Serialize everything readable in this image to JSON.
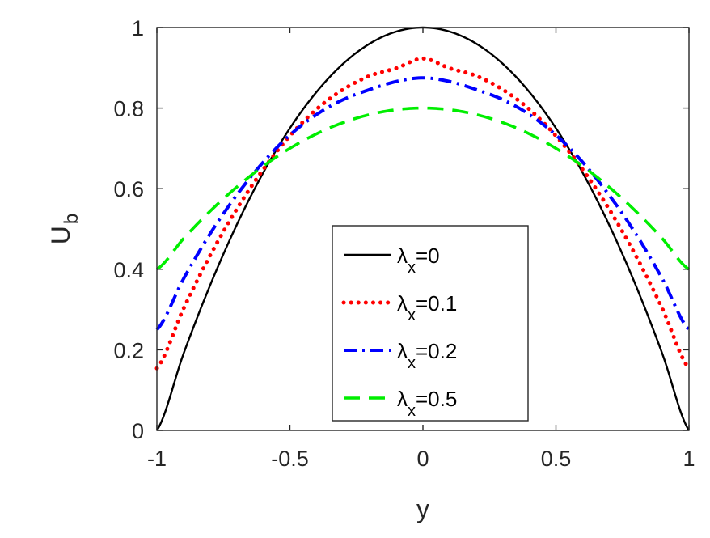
{
  "chart_data": {
    "type": "line",
    "xlabel": "y",
    "ylabel": {
      "main": "U",
      "sub": "b"
    },
    "xlim": [
      -1,
      1
    ],
    "ylim": [
      0,
      1
    ],
    "xticks": [
      -1,
      -0.5,
      0,
      0.5,
      1
    ],
    "xtick_labels": [
      "-1",
      "-0.5",
      "0",
      "0.5",
      "1"
    ],
    "yticks": [
      0,
      0.2,
      0.4,
      0.6,
      0.8,
      1
    ],
    "ytick_labels": [
      "0",
      "0.2",
      "0.4",
      "0.6",
      "0.8",
      "1"
    ],
    "grid": false,
    "legend_position": "center-bottom (inside axes)",
    "x": [
      -1.0,
      -0.9,
      -0.8,
      -0.7,
      -0.6,
      -0.5,
      -0.4,
      -0.3,
      -0.2,
      -0.1,
      0.0,
      0.1,
      0.2,
      0.3,
      0.4,
      0.5,
      0.6,
      0.7,
      0.8,
      0.9,
      1.0
    ],
    "series": [
      {
        "legend_symbol": "λ",
        "legend_sub": "x",
        "legend_value": "=0",
        "color": "#000000",
        "style": "solid",
        "values": [
          0.0,
          0.19,
          0.36,
          0.51,
          0.64,
          0.75,
          0.84,
          0.91,
          0.96,
          0.99,
          1.0,
          0.99,
          0.96,
          0.91,
          0.84,
          0.75,
          0.64,
          0.51,
          0.36,
          0.19,
          0.0
        ]
      },
      {
        "legend_symbol": "λ",
        "legend_sub": "x",
        "legend_value": "=0.1",
        "color": "#ff0000",
        "style": "dotted",
        "values": [
          0.154,
          0.302,
          0.434,
          0.549,
          0.648,
          0.731,
          0.797,
          0.846,
          0.88,
          0.899,
          0.923,
          0.899,
          0.88,
          0.846,
          0.797,
          0.731,
          0.648,
          0.549,
          0.434,
          0.302,
          0.154
        ]
      },
      {
        "legend_symbol": "λ",
        "legend_sub": "x",
        "legend_value": "=0.2",
        "color": "#0000ff",
        "style": "dash-dot",
        "values": [
          0.25,
          0.376,
          0.488,
          0.584,
          0.666,
          0.733,
          0.784,
          0.821,
          0.846,
          0.866,
          0.875,
          0.866,
          0.846,
          0.821,
          0.784,
          0.733,
          0.666,
          0.584,
          0.488,
          0.376,
          0.25
        ]
      },
      {
        "legend_symbol": "λ",
        "legend_sub": "x",
        "legend_value": "=0.5",
        "color": "#00ee00",
        "style": "dashed",
        "values": [
          0.4,
          0.476,
          0.544,
          0.604,
          0.656,
          0.7,
          0.736,
          0.764,
          0.784,
          0.796,
          0.8,
          0.796,
          0.784,
          0.764,
          0.736,
          0.7,
          0.656,
          0.604,
          0.544,
          0.476,
          0.4
        ]
      }
    ]
  }
}
